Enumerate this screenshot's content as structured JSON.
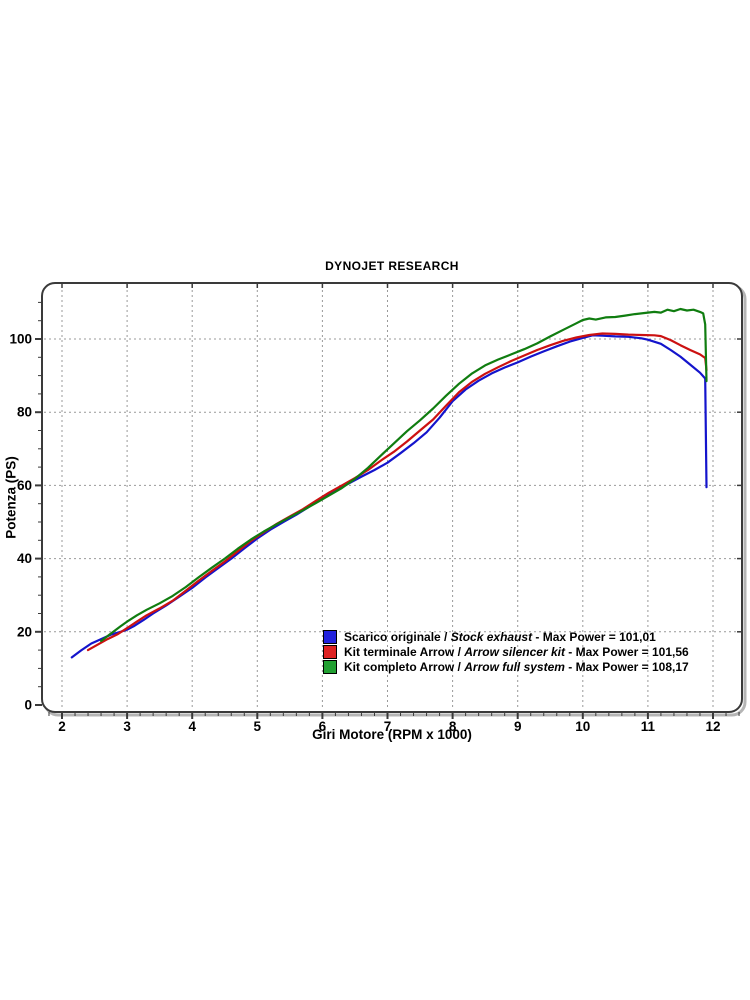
{
  "title": "DYNOJET RESEARCH",
  "chart_data": {
    "type": "line",
    "title": "DYNOJET RESEARCH",
    "xlabel": "Giri Motore (RPM x 1000)",
    "ylabel": "Potenza (PS)",
    "x_ticks": [
      2,
      3,
      4,
      5,
      6,
      7,
      8,
      9,
      10,
      11,
      12
    ],
    "y_ticks": [
      0,
      20,
      40,
      60,
      80,
      100
    ],
    "xlim": [
      1.69,
      12.45
    ],
    "ylim": [
      -2,
      115.5
    ],
    "grid": "dashed",
    "grid_color": "#999999",
    "legend_position": "inside-bottom-right",
    "series": [
      {
        "name": "Scarico originale / Stock exhaust",
        "max_power": "101,01",
        "color": "#1414cc",
        "points": [
          [
            2.15,
            13
          ],
          [
            2.3,
            15
          ],
          [
            2.45,
            16.8
          ],
          [
            2.6,
            18
          ],
          [
            2.75,
            19.2
          ],
          [
            2.9,
            20
          ],
          [
            3.0,
            20.6
          ],
          [
            3.1,
            21.5
          ],
          [
            3.25,
            23.2
          ],
          [
            3.4,
            25
          ],
          [
            3.6,
            27.2
          ],
          [
            3.8,
            29.6
          ],
          [
            4.0,
            32
          ],
          [
            4.2,
            34.8
          ],
          [
            4.4,
            37.4
          ],
          [
            4.6,
            40
          ],
          [
            4.8,
            42.8
          ],
          [
            5.0,
            45.5
          ],
          [
            5.2,
            47.9
          ],
          [
            5.4,
            50
          ],
          [
            5.6,
            52
          ],
          [
            5.8,
            54.2
          ],
          [
            6.0,
            56.5
          ],
          [
            6.2,
            58.6
          ],
          [
            6.4,
            60.5
          ],
          [
            6.6,
            62.4
          ],
          [
            6.8,
            64.2
          ],
          [
            7.0,
            66.2
          ],
          [
            7.2,
            68.8
          ],
          [
            7.4,
            71.5
          ],
          [
            7.6,
            74.5
          ],
          [
            7.8,
            78.5
          ],
          [
            8.0,
            83
          ],
          [
            8.2,
            86.2
          ],
          [
            8.4,
            88.6
          ],
          [
            8.6,
            90.6
          ],
          [
            8.8,
            92.2
          ],
          [
            9.0,
            93.6
          ],
          [
            9.2,
            95.2
          ],
          [
            9.4,
            96.6
          ],
          [
            9.6,
            98
          ],
          [
            9.8,
            99.3
          ],
          [
            10.0,
            100.3
          ],
          [
            10.15,
            101.0
          ],
          [
            10.3,
            100.9
          ],
          [
            10.5,
            100.7
          ],
          [
            10.7,
            100.6
          ],
          [
            10.9,
            100.2
          ],
          [
            11.0,
            99.8
          ],
          [
            11.2,
            98.7
          ],
          [
            11.35,
            97
          ],
          [
            11.5,
            95.2
          ],
          [
            11.65,
            93
          ],
          [
            11.8,
            90.8
          ],
          [
            11.88,
            89.2
          ],
          [
            11.9,
            59.5
          ]
        ]
      },
      {
        "name": "Kit terminale Arrow / Arrow silencer kit",
        "max_power": "101,56",
        "color": "#cc1111",
        "points": [
          [
            2.4,
            15
          ],
          [
            2.55,
            16.5
          ],
          [
            2.7,
            18
          ],
          [
            2.85,
            19.3
          ],
          [
            3.0,
            21
          ],
          [
            3.15,
            22.8
          ],
          [
            3.3,
            24.5
          ],
          [
            3.5,
            26.4
          ],
          [
            3.7,
            28.5
          ],
          [
            3.9,
            31.2
          ],
          [
            4.1,
            34
          ],
          [
            4.3,
            36.6
          ],
          [
            4.5,
            39.2
          ],
          [
            4.7,
            42
          ],
          [
            4.9,
            44.8
          ],
          [
            5.1,
            47.2
          ],
          [
            5.3,
            49.5
          ],
          [
            5.5,
            51.5
          ],
          [
            5.7,
            53.5
          ],
          [
            5.9,
            55.8
          ],
          [
            6.1,
            58
          ],
          [
            6.3,
            60
          ],
          [
            6.5,
            62
          ],
          [
            6.7,
            64.2
          ],
          [
            6.9,
            66.8
          ],
          [
            7.1,
            69.2
          ],
          [
            7.3,
            72
          ],
          [
            7.5,
            75
          ],
          [
            7.7,
            78
          ],
          [
            7.9,
            81.8
          ],
          [
            8.1,
            85.5
          ],
          [
            8.3,
            88.3
          ],
          [
            8.5,
            90.5
          ],
          [
            8.7,
            92.3
          ],
          [
            8.9,
            94
          ],
          [
            9.1,
            95.5
          ],
          [
            9.3,
            97
          ],
          [
            9.5,
            98.3
          ],
          [
            9.7,
            99.5
          ],
          [
            9.9,
            100.4
          ],
          [
            10.1,
            101.1
          ],
          [
            10.3,
            101.5
          ],
          [
            10.5,
            101.4
          ],
          [
            10.7,
            101.2
          ],
          [
            10.9,
            101.1
          ],
          [
            11.1,
            101.0
          ],
          [
            11.2,
            100.8
          ],
          [
            11.35,
            99.7
          ],
          [
            11.5,
            98.3
          ],
          [
            11.65,
            97
          ],
          [
            11.8,
            95.8
          ],
          [
            11.88,
            94.8
          ],
          [
            11.9,
            91.5
          ]
        ]
      },
      {
        "name": "Kit completo Arrow / Arrow full system",
        "max_power": "108,17",
        "color": "#107d10",
        "points": [
          [
            2.6,
            17.5
          ],
          [
            2.75,
            19.5
          ],
          [
            2.9,
            21.5
          ],
          [
            3.0,
            22.8
          ],
          [
            3.15,
            24.5
          ],
          [
            3.3,
            26
          ],
          [
            3.5,
            27.8
          ],
          [
            3.7,
            29.8
          ],
          [
            3.9,
            32.2
          ],
          [
            4.1,
            34.9
          ],
          [
            4.3,
            37.5
          ],
          [
            4.5,
            40
          ],
          [
            4.7,
            42.7
          ],
          [
            4.9,
            45.2
          ],
          [
            5.1,
            47.4
          ],
          [
            5.3,
            49.4
          ],
          [
            5.5,
            51.3
          ],
          [
            5.7,
            53.2
          ],
          [
            5.9,
            55.2
          ],
          [
            6.1,
            57.2
          ],
          [
            6.3,
            59.3
          ],
          [
            6.5,
            61.8
          ],
          [
            6.7,
            64.8
          ],
          [
            6.9,
            68.2
          ],
          [
            7.1,
            71.5
          ],
          [
            7.3,
            74.8
          ],
          [
            7.5,
            77.8
          ],
          [
            7.7,
            81
          ],
          [
            7.9,
            84.5
          ],
          [
            8.1,
            87.8
          ],
          [
            8.3,
            90.6
          ],
          [
            8.5,
            92.8
          ],
          [
            8.7,
            94.4
          ],
          [
            8.9,
            95.8
          ],
          [
            9.1,
            97.2
          ],
          [
            9.3,
            98.8
          ],
          [
            9.5,
            100.7
          ],
          [
            9.7,
            102.5
          ],
          [
            9.9,
            104.3
          ],
          [
            10.0,
            105.2
          ],
          [
            10.1,
            105.6
          ],
          [
            10.2,
            105.3
          ],
          [
            10.35,
            105.9
          ],
          [
            10.5,
            106.0
          ],
          [
            10.65,
            106.4
          ],
          [
            10.8,
            106.8
          ],
          [
            10.95,
            107.1
          ],
          [
            11.1,
            107.4
          ],
          [
            11.2,
            107.2
          ],
          [
            11.3,
            108.0
          ],
          [
            11.4,
            107.6
          ],
          [
            11.5,
            108.2
          ],
          [
            11.6,
            107.8
          ],
          [
            11.7,
            108.0
          ],
          [
            11.8,
            107.4
          ],
          [
            11.85,
            107
          ],
          [
            11.88,
            104
          ],
          [
            11.9,
            88.5
          ]
        ]
      }
    ]
  },
  "legend": {
    "items": [
      {
        "swatch_color": "#2222dd",
        "prefix": "Scarico originale / ",
        "italic": "Stock exhaust",
        "suffix": " - Max Power = 101,01"
      },
      {
        "swatch_color": "#dd2222",
        "prefix": "Kit terminale Arrow / ",
        "italic": "Arrow silencer kit",
        "suffix": " - Max Power = 101,56"
      },
      {
        "swatch_color": "#22a032",
        "prefix": "Kit completo Arrow / ",
        "italic": "Arrow full system",
        "suffix": " - Max Power = 108,17"
      }
    ]
  }
}
